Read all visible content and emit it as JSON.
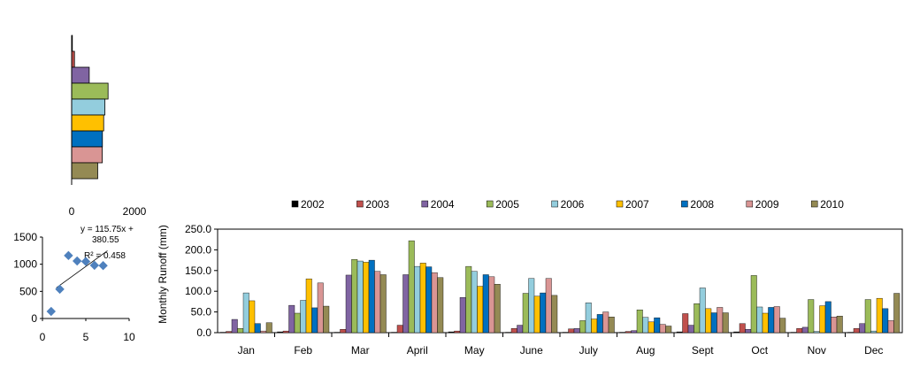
{
  "colors": [
    "#000000",
    "#C0504D",
    "#8064A2",
    "#9BBB59",
    "#93CDDD",
    "#FFC000",
    "#0070C0",
    "#D99594",
    "#948A54"
  ],
  "chart_data": [
    {
      "type": "bar",
      "orientation": "horizontal",
      "series_labels": [
        "2002",
        "2003",
        "2004",
        "2005",
        "2006",
        "2007",
        "2008",
        "2009",
        "2010"
      ],
      "values": [
        15,
        90,
        560,
        1160,
        1060,
        1020,
        980,
        975,
        830
      ],
      "xlim": [
        0,
        2000
      ],
      "x_ticks": [
        "0",
        "2000"
      ],
      "grid": false
    },
    {
      "type": "scatter",
      "points": [
        [
          1,
          130
        ],
        [
          2,
          540
        ],
        [
          3,
          1160
        ],
        [
          4,
          1060
        ],
        [
          5,
          1050
        ],
        [
          6,
          980
        ],
        [
          7,
          975
        ]
      ],
      "trendline": {
        "slope": 115.75,
        "intercept": 380.55
      },
      "equation": "y = 115.75x + 380.55",
      "equation_lines": [
        "y = 115.75x +",
        "380.55"
      ],
      "r2": "R² = 0.458",
      "xlim": [
        0,
        10
      ],
      "ylim": [
        0,
        1500
      ],
      "x_ticks": [
        "0",
        "5",
        "10"
      ],
      "y_ticks": [
        "0",
        "500",
        "1000",
        "1500"
      ],
      "grid": false
    },
    {
      "type": "bar",
      "ylabel": "Monthly  Runoff (mm)",
      "categories": [
        "Jan",
        "Feb",
        "Mar",
        "April",
        "May",
        "June",
        "July",
        "Aug",
        "Sept",
        "Oct",
        "Nov",
        "Dec"
      ],
      "ylim": [
        0,
        250
      ],
      "y_ticks": [
        "0.0",
        "50.0",
        "100.0",
        "150.0",
        "200.0",
        "250.0"
      ],
      "legend_position": "top",
      "grid": false,
      "series": [
        {
          "name": "2002",
          "values": [
            1,
            2,
            1,
            1,
            2,
            1,
            1,
            1,
            2,
            2,
            1,
            1
          ]
        },
        {
          "name": "2003",
          "values": [
            3,
            4,
            8,
            18,
            4,
            10,
            9,
            3,
            46,
            22,
            10,
            10
          ]
        },
        {
          "name": "2004",
          "values": [
            32,
            66,
            139,
            140,
            85,
            18,
            10,
            5,
            18,
            8,
            13,
            22
          ]
        },
        {
          "name": "2005",
          "values": [
            10,
            47,
            177,
            222,
            160,
            95,
            29,
            55,
            70,
            138,
            80,
            80
          ]
        },
        {
          "name": "2006",
          "values": [
            96,
            78,
            173,
            160,
            148,
            131,
            72,
            37,
            108,
            62,
            3,
            4
          ]
        },
        {
          "name": "2007",
          "values": [
            77,
            130,
            170,
            168,
            112,
            88,
            33,
            26,
            58,
            47,
            65,
            83
          ]
        },
        {
          "name": "2008",
          "values": [
            22,
            60,
            175,
            159,
            140,
            96,
            44,
            36,
            48,
            61,
            75,
            58
          ]
        },
        {
          "name": "2009",
          "values": [
            4,
            120,
            148,
            145,
            135,
            131,
            50,
            20,
            61,
            63,
            38,
            29
          ]
        },
        {
          "name": "2010",
          "values": [
            24,
            64,
            140,
            133,
            117,
            90,
            38,
            16,
            48,
            35,
            40,
            95
          ]
        }
      ]
    }
  ]
}
